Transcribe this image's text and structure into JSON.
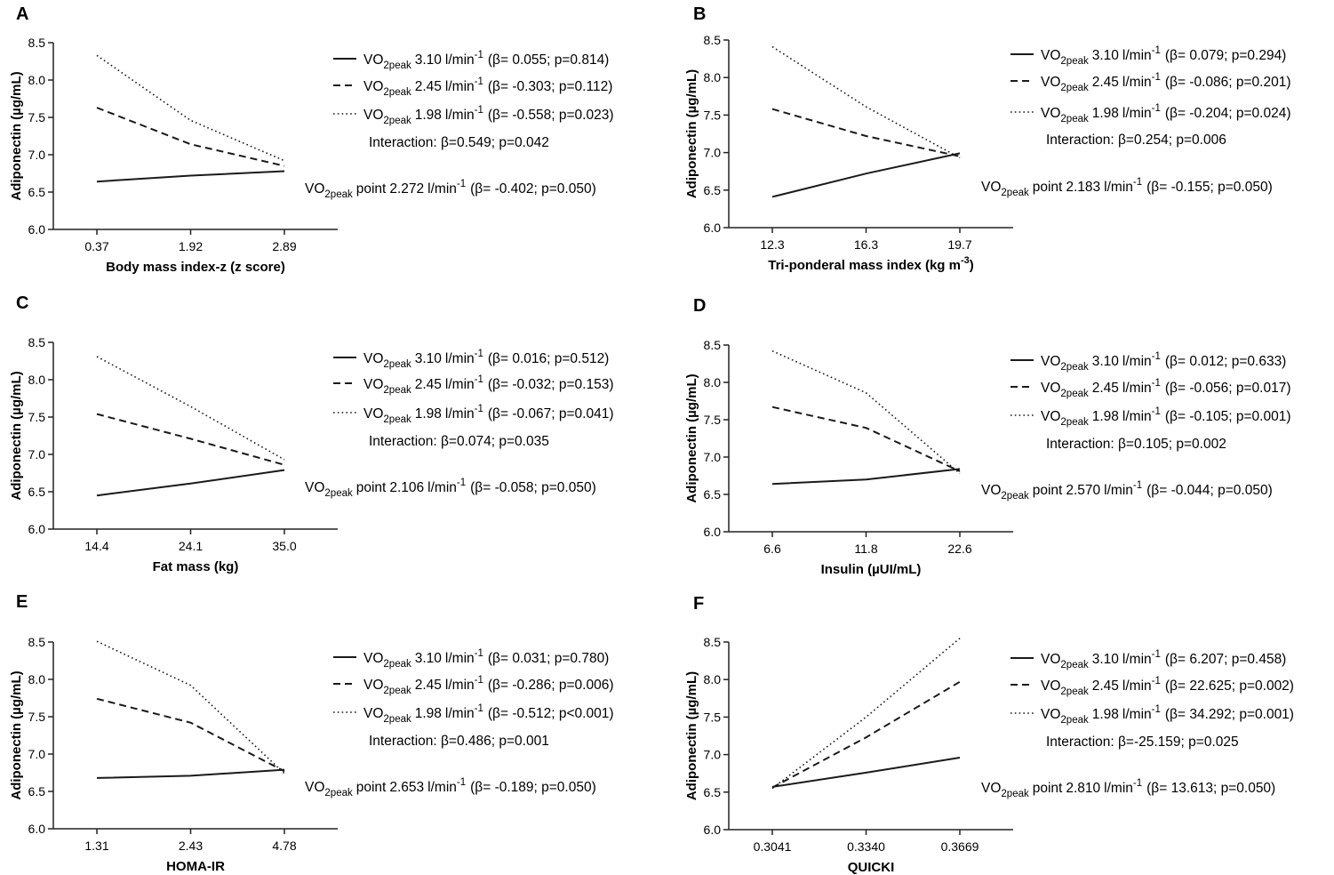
{
  "figure": {
    "y_axis_label": "Adiponectin (µg/mL)",
    "vo2_base": "VO",
    "vo2_sub": "2peak",
    "unit_base": "l/min",
    "unit_sup": "-1",
    "point_word": "point",
    "interaction_prefix": "Interaction: "
  },
  "chart_data": [
    {
      "type": "line",
      "panel": "A",
      "title": "",
      "xlabel": "Body mass index-z (z score)",
      "xlabel_sup": "",
      "xlabel_suffix": "",
      "ylabel": "Adiponectin (µg/mL)",
      "ylim": [
        6.0,
        8.5
      ],
      "yticks": [
        "6.0",
        "6.5",
        "7.0",
        "7.5",
        "8.0",
        "8.5"
      ],
      "categories": [
        "0.37",
        "1.92",
        "2.89"
      ],
      "series": [
        {
          "name": "VO2peak 3.10 l/min-1",
          "vo2": "3.10",
          "style": "solid",
          "stats": "(β= 0.055; p=0.814)",
          "values": [
            6.64,
            6.72,
            6.78
          ]
        },
        {
          "name": "VO2peak 2.45 l/min-1",
          "vo2": "2.45",
          "style": "dashed",
          "stats": "(β= -0.303; p=0.112)",
          "values": [
            7.63,
            7.14,
            6.85
          ]
        },
        {
          "name": "VO2peak 1.98 l/min-1",
          "vo2": "1.98",
          "style": "dotted",
          "stats": "(β= -0.558; p=0.023)",
          "values": [
            8.33,
            7.46,
            6.92
          ]
        }
      ],
      "interaction": "β=0.549; p=0.042",
      "vo2_point": "2.272",
      "point_stats": "(β= -0.402; p=0.050)"
    },
    {
      "type": "line",
      "panel": "B",
      "title": "",
      "xlabel": "Tri-ponderal mass index (kg m",
      "xlabel_sup": "-3",
      "xlabel_suffix": ")",
      "ylabel": "Adiponectin (µg/mL)",
      "ylim": [
        6.0,
        8.5
      ],
      "yticks": [
        "6.0",
        "6.5",
        "7.0",
        "7.5",
        "8.0",
        "8.5"
      ],
      "categories": [
        "12.3",
        "16.3",
        "19.7"
      ],
      "series": [
        {
          "name": "VO2peak 3.10 l/min-1",
          "vo2": "3.10",
          "style": "solid",
          "stats": "(β= 0.079; p=0.294)",
          "values": [
            6.41,
            6.72,
            6.99
          ]
        },
        {
          "name": "VO2peak 2.45 l/min-1",
          "vo2": "2.45",
          "style": "dashed",
          "stats": "(β= -0.086; p=0.201)",
          "values": [
            7.58,
            7.22,
            6.95
          ]
        },
        {
          "name": "VO2peak 1.98 l/min-1",
          "vo2": "1.98",
          "style": "dotted",
          "stats": "(β= -0.204; p=0.024)",
          "values": [
            8.41,
            7.61,
            6.93
          ]
        }
      ],
      "interaction": "β=0.254; p=0.006",
      "vo2_point": "2.183",
      "point_stats": "(β= -0.155; p=0.050)"
    },
    {
      "type": "line",
      "panel": "C",
      "title": "",
      "xlabel": "Fat mass (kg)",
      "xlabel_sup": "",
      "xlabel_suffix": "",
      "ylabel": "Adiponectin (µg/mL)",
      "ylim": [
        6.0,
        8.5
      ],
      "yticks": [
        "6.0",
        "6.5",
        "7.0",
        "7.5",
        "8.0",
        "8.5"
      ],
      "categories": [
        "14.4",
        "24.1",
        "35.0"
      ],
      "series": [
        {
          "name": "VO2peak 3.10 l/min-1",
          "vo2": "3.10",
          "style": "solid",
          "stats": "(β= 0.016; p=0.512)",
          "values": [
            6.45,
            6.61,
            6.79
          ]
        },
        {
          "name": "VO2peak 2.45 l/min-1",
          "vo2": "2.45",
          "style": "dashed",
          "stats": "(β= -0.032; p=0.153)",
          "values": [
            7.54,
            7.21,
            6.86
          ]
        },
        {
          "name": "VO2peak 1.98 l/min-1",
          "vo2": "1.98",
          "style": "dotted",
          "stats": "(β= -0.067; p=0.041)",
          "values": [
            8.31,
            7.64,
            6.93
          ]
        }
      ],
      "interaction": "β=0.074; p=0.035",
      "vo2_point": "2.106",
      "point_stats": "(β= -0.058; p=0.050)"
    },
    {
      "type": "line",
      "panel": "D",
      "title": "",
      "xlabel": "Insulin (µUI/mL)",
      "xlabel_sup": "",
      "xlabel_suffix": "",
      "ylabel": "Adiponectin (µg/mL)",
      "ylim": [
        6.0,
        8.5
      ],
      "yticks": [
        "6.0",
        "6.5",
        "7.0",
        "7.5",
        "8.0",
        "8.5"
      ],
      "categories": [
        "6.6",
        "11.8",
        "22.6"
      ],
      "series": [
        {
          "name": "VO2peak 3.10 l/min-1",
          "vo2": "3.10",
          "style": "solid",
          "stats": "(β= 0.012; p=0.633)",
          "values": [
            6.64,
            6.7,
            6.84
          ]
        },
        {
          "name": "VO2peak 2.45 l/min-1",
          "vo2": "2.45",
          "style": "dashed",
          "stats": "(β= -0.056; p=0.017)",
          "values": [
            7.67,
            7.39,
            6.81
          ]
        },
        {
          "name": "VO2peak 1.98 l/min-1",
          "vo2": "1.98",
          "style": "dotted",
          "stats": "(β= -0.105; p=0.001)",
          "values": [
            8.42,
            7.86,
            6.78
          ]
        }
      ],
      "interaction": "β=0.105; p=0.002",
      "vo2_point": "2.570",
      "point_stats": "(β= -0.044; p=0.050)"
    },
    {
      "type": "line",
      "panel": "E",
      "title": "",
      "xlabel": "HOMA-IR",
      "xlabel_sup": "",
      "xlabel_suffix": "",
      "ylabel": "Adiponectin (µg/mL)",
      "ylim": [
        6.0,
        8.5
      ],
      "yticks": [
        "6.0",
        "6.5",
        "7.0",
        "7.5",
        "8.0",
        "8.5"
      ],
      "categories": [
        "1.31",
        "2.43",
        "4.78"
      ],
      "series": [
        {
          "name": "VO2peak 3.10 l/min-1",
          "vo2": "3.10",
          "style": "solid",
          "stats": "(β= 0.031; p=0.780)",
          "values": [
            6.68,
            6.71,
            6.79
          ]
        },
        {
          "name": "VO2peak 2.45 l/min-1",
          "vo2": "2.45",
          "style": "dashed",
          "stats": "(β= -0.286; p=0.006)",
          "values": [
            7.74,
            7.42,
            6.77
          ]
        },
        {
          "name": "VO2peak 1.98 l/min-1",
          "vo2": "1.98",
          "style": "dotted",
          "stats": "(β= -0.512; p<0.001)",
          "values": [
            8.51,
            7.92,
            6.74
          ]
        }
      ],
      "interaction": "β=0.486; p=0.001",
      "vo2_point": "2.653",
      "point_stats": "(β= -0.189; p=0.050)"
    },
    {
      "type": "line",
      "panel": "F",
      "title": "",
      "xlabel": "QUICKI",
      "xlabel_sup": "",
      "xlabel_suffix": "",
      "ylabel": "Adiponectin (µg/mL)",
      "ylim": [
        6.0,
        8.5
      ],
      "yticks": [
        "6.0",
        "6.5",
        "7.0",
        "7.5",
        "8.0",
        "8.5"
      ],
      "categories": [
        "0.3041",
        "0.3340",
        "0.3669"
      ],
      "series": [
        {
          "name": "VO2peak 3.10 l/min-1",
          "vo2": "3.10",
          "style": "solid",
          "stats": "(β= 6.207; p=0.458)",
          "values": [
            6.57,
            6.76,
            6.96
          ]
        },
        {
          "name": "VO2peak 2.45 l/min-1",
          "vo2": "2.45",
          "style": "dashed",
          "stats": "(β= 22.625; p=0.002)",
          "values": [
            6.56,
            7.23,
            7.97
          ]
        },
        {
          "name": "VO2peak 1.98 l/min-1",
          "vo2": "1.98",
          "style": "dotted",
          "stats": "(β= 34.292; p=0.001)",
          "values": [
            6.55,
            7.5,
            8.55
          ]
        }
      ],
      "interaction": "β=-25.159; p=0.025",
      "vo2_point": "2.810",
      "point_stats": "(β= 13.613; p=0.050)"
    }
  ]
}
